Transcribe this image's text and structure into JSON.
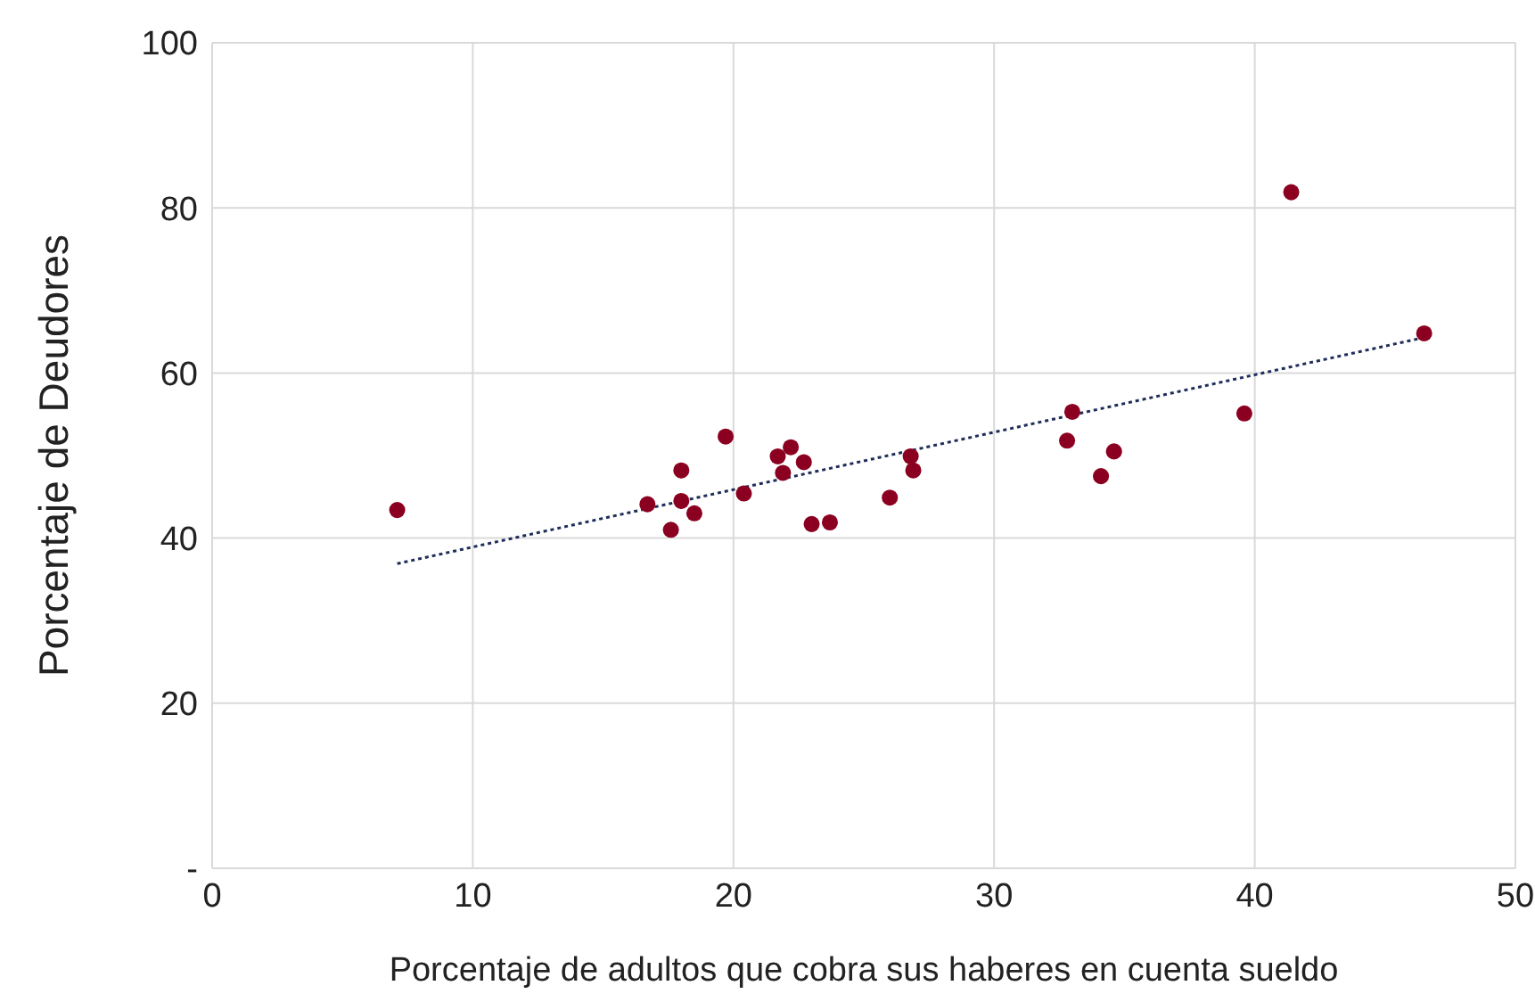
{
  "chart_data": {
    "type": "scatter",
    "xlabel": "Porcentaje de adultos que cobra sus haberes en cuenta sueldo",
    "ylabel": "Porcentaje de Deudores",
    "xlim": [
      0,
      50
    ],
    "xticks": [
      0,
      10,
      20,
      30,
      40,
      50
    ],
    "ylim": [
      0,
      100
    ],
    "yticks": [
      {
        "value": 0,
        "label": "-"
      },
      20,
      40,
      60,
      80,
      100
    ],
    "grid": true,
    "marker": "circle",
    "series": [
      {
        "color": "#8b0020",
        "x": [
          7.1,
          16.7,
          17.6,
          18.0,
          18.0,
          18.5,
          19.7,
          20.4,
          21.7,
          21.9,
          22.2,
          22.7,
          23.0,
          23.7,
          26.0,
          26.8,
          26.9,
          32.8,
          33.0,
          34.1,
          34.6,
          39.6,
          41.4,
          46.5
        ],
        "values": [
          43.4,
          44.1,
          41.0,
          48.2,
          44.5,
          43.0,
          52.3,
          45.4,
          49.9,
          47.9,
          51.0,
          49.2,
          41.7,
          41.9,
          44.9,
          49.9,
          48.2,
          51.8,
          55.3,
          47.5,
          50.5,
          55.1,
          81.9,
          64.8
        ]
      },
      {
        "type": "line",
        "color": "#1f2d5a",
        "line_style": "dotted",
        "marker": "none",
        "x": [
          7.1,
          46.5
        ],
        "values": [
          36.9,
          64.3
        ]
      }
    ]
  }
}
